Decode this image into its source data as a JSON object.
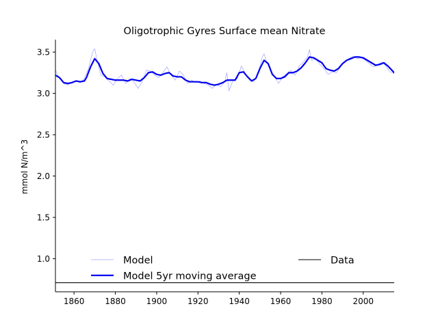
{
  "chart_data": {
    "type": "line",
    "title": "Oligotrophic Gyres Surface mean Nitrate",
    "xlabel": "",
    "ylabel": "mmol N/m^3",
    "xlim": [
      1851,
      2015
    ],
    "ylim": [
      0.6,
      3.65
    ],
    "x_ticks": [
      1860,
      1880,
      1900,
      1920,
      1940,
      1960,
      1980,
      2000
    ],
    "y_ticks": [
      1.0,
      1.5,
      2.0,
      2.5,
      3.0,
      3.5
    ],
    "x_tick_labels": [
      "1860",
      "1880",
      "1900",
      "1920",
      "1940",
      "1960",
      "1980",
      "2000"
    ],
    "y_tick_labels": [
      "1.0",
      "1.5",
      "2.0",
      "2.5",
      "3.0",
      "3.5"
    ],
    "grid": false,
    "legend": {
      "location": "bottom",
      "entries": [
        {
          "label": "Model",
          "color": "#a0a0ff",
          "style": "thin"
        },
        {
          "label": "Model 5yr moving average",
          "color": "#0000ee",
          "style": "thick"
        },
        {
          "label": "Data",
          "color": "#000000",
          "style": "thin"
        }
      ]
    },
    "series": [
      {
        "name": "Model",
        "color": "#a0a0ff",
        "x": [
          1851,
          1853,
          1855,
          1857,
          1859,
          1861,
          1863,
          1865,
          1867,
          1869,
          1870,
          1871,
          1873,
          1875,
          1877,
          1879,
          1881,
          1883,
          1885,
          1887,
          1889,
          1891,
          1893,
          1895,
          1897,
          1899,
          1901,
          1903,
          1905,
          1907,
          1909,
          1911,
          1913,
          1915,
          1917,
          1919,
          1921,
          1923,
          1925,
          1927,
          1929,
          1931,
          1933,
          1934,
          1935,
          1937,
          1939,
          1941,
          1943,
          1945,
          1947,
          1949,
          1951,
          1952,
          1953,
          1955,
          1957,
          1959,
          1961,
          1963,
          1965,
          1967,
          1969,
          1971,
          1973,
          1974,
          1975,
          1977,
          1979,
          1981,
          1983,
          1985,
          1987,
          1989,
          1991,
          1993,
          1995,
          1997,
          1999,
          2001,
          2003,
          2005,
          2007,
          2009,
          2011,
          2013,
          2015
        ],
        "y": [
          3.28,
          3.18,
          3.12,
          3.1,
          3.14,
          3.15,
          3.13,
          3.18,
          3.3,
          3.5,
          3.54,
          3.42,
          3.22,
          3.2,
          3.15,
          3.1,
          3.18,
          3.22,
          3.12,
          3.18,
          3.14,
          3.06,
          3.14,
          3.28,
          3.27,
          3.22,
          3.19,
          3.25,
          3.32,
          3.22,
          3.16,
          3.27,
          3.22,
          3.12,
          3.16,
          3.13,
          3.15,
          3.12,
          3.1,
          3.06,
          3.11,
          3.08,
          3.14,
          3.25,
          3.03,
          3.16,
          3.18,
          3.33,
          3.24,
          3.16,
          3.14,
          3.23,
          3.43,
          3.48,
          3.4,
          3.28,
          3.21,
          3.12,
          3.2,
          3.24,
          3.28,
          3.22,
          3.33,
          3.38,
          3.44,
          3.53,
          3.4,
          3.42,
          3.35,
          3.3,
          3.23,
          3.26,
          3.25,
          3.32,
          3.38,
          3.42,
          3.45,
          3.42,
          3.43,
          3.4,
          3.36,
          3.32,
          3.35,
          3.38,
          3.33,
          3.26,
          3.24
        ]
      },
      {
        "name": "Model 5yr moving average",
        "color": "#0000ee",
        "x": [
          1851,
          1853,
          1855,
          1857,
          1859,
          1861,
          1863,
          1865,
          1866,
          1868,
          1870,
          1872,
          1874,
          1876,
          1878,
          1880,
          1882,
          1884,
          1886,
          1888,
          1890,
          1892,
          1894,
          1896,
          1898,
          1900,
          1902,
          1904,
          1906,
          1908,
          1910,
          1912,
          1914,
          1916,
          1918,
          1920,
          1922,
          1924,
          1926,
          1928,
          1930,
          1932,
          1934,
          1936,
          1938,
          1940,
          1942,
          1944,
          1946,
          1948,
          1950,
          1952,
          1954,
          1956,
          1958,
          1960,
          1962,
          1964,
          1966,
          1968,
          1970,
          1972,
          1974,
          1976,
          1978,
          1980,
          1982,
          1984,
          1986,
          1988,
          1990,
          1992,
          1994,
          1996,
          1998,
          2000,
          2002,
          2004,
          2006,
          2008,
          2010,
          2012,
          2015
        ],
        "y": [
          3.22,
          3.19,
          3.13,
          3.12,
          3.13,
          3.15,
          3.14,
          3.15,
          3.19,
          3.32,
          3.42,
          3.36,
          3.24,
          3.18,
          3.17,
          3.16,
          3.16,
          3.16,
          3.15,
          3.17,
          3.16,
          3.15,
          3.19,
          3.25,
          3.26,
          3.23,
          3.22,
          3.24,
          3.25,
          3.21,
          3.2,
          3.2,
          3.16,
          3.14,
          3.14,
          3.14,
          3.13,
          3.13,
          3.11,
          3.1,
          3.11,
          3.13,
          3.16,
          3.16,
          3.16,
          3.25,
          3.26,
          3.2,
          3.15,
          3.18,
          3.3,
          3.4,
          3.36,
          3.23,
          3.18,
          3.18,
          3.2,
          3.25,
          3.25,
          3.27,
          3.31,
          3.37,
          3.44,
          3.43,
          3.4,
          3.37,
          3.3,
          3.28,
          3.27,
          3.3,
          3.36,
          3.4,
          3.42,
          3.44,
          3.44,
          3.43,
          3.4,
          3.37,
          3.34,
          3.35,
          3.37,
          3.33,
          3.25
        ]
      },
      {
        "name": "Data",
        "color": "#000000",
        "x": [
          1851,
          2015
        ],
        "y": [
          0.71,
          0.71
        ]
      }
    ]
  }
}
